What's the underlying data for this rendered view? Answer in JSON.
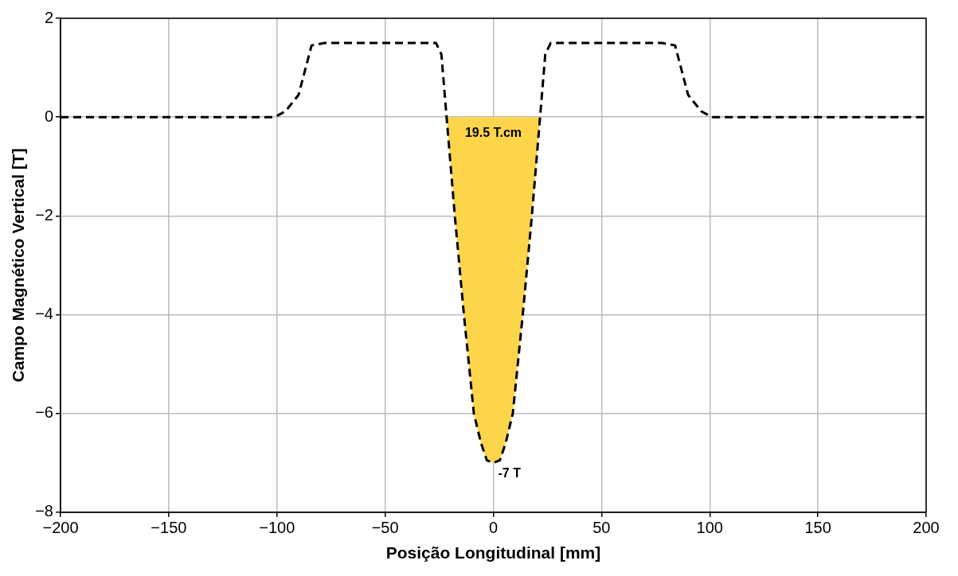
{
  "chart_data": {
    "type": "line",
    "xlabel": "Posição Longitudinal [mm]",
    "ylabel": "Campo Magnético Vertical [T]",
    "series": [
      {
        "type": "area",
        "color": "#fdd54b",
        "x": [
          -21.6,
          -17.8,
          -13.6,
          -9,
          -5.7,
          -3,
          0,
          3,
          5.7,
          9,
          13.6,
          17.8,
          21.6
        ],
        "values": [
          0,
          -2,
          -4,
          -6,
          -6.6,
          -6.95,
          -7,
          -6.95,
          -6.6,
          -6,
          -4,
          -2,
          0
        ]
      },
      {
        "type": "line",
        "color": "#000000",
        "line_style": "dashed",
        "x": [
          -200,
          -101,
          -96,
          -90,
          -84,
          -78,
          -26.5,
          -24,
          -21.6,
          -17.8,
          -13.6,
          -9,
          -5.7,
          -3,
          0,
          3,
          5.7,
          9,
          13.6,
          17.8,
          21.6,
          24,
          26.5,
          78,
          84,
          90,
          96,
          101,
          200
        ],
        "values": [
          0,
          0,
          0.12,
          0.45,
          1.45,
          1.5,
          1.5,
          1.27,
          0,
          -2,
          -4,
          -6,
          -6.6,
          -6.95,
          -7,
          -6.95,
          -6.6,
          -6,
          -4,
          -2,
          0,
          1.27,
          1.5,
          1.5,
          1.45,
          0.45,
          0.12,
          0,
          0
        ]
      }
    ],
    "annotations": [
      "19.5 T.cm",
      {
        "text": "-7 T",
        "x": 0,
        "y": -7
      }
    ],
    "xlim": [
      -200,
      200
    ],
    "xticks": [
      {
        "value": -200,
        "label": "−200"
      },
      {
        "value": -150,
        "label": "−150"
      },
      {
        "value": -100,
        "label": "−100"
      },
      {
        "value": -50,
        "label": "−50"
      },
      0,
      50,
      100,
      150,
      200
    ],
    "ylim": [
      -8,
      2
    ],
    "yticks": [
      {
        "value": -8,
        "label": "−8"
      },
      {
        "value": -6,
        "label": "−6"
      },
      {
        "value": -4,
        "label": "−4"
      },
      {
        "value": -2,
        "label": "−2"
      },
      0,
      2
    ],
    "grid": true,
    "legend": false
  }
}
